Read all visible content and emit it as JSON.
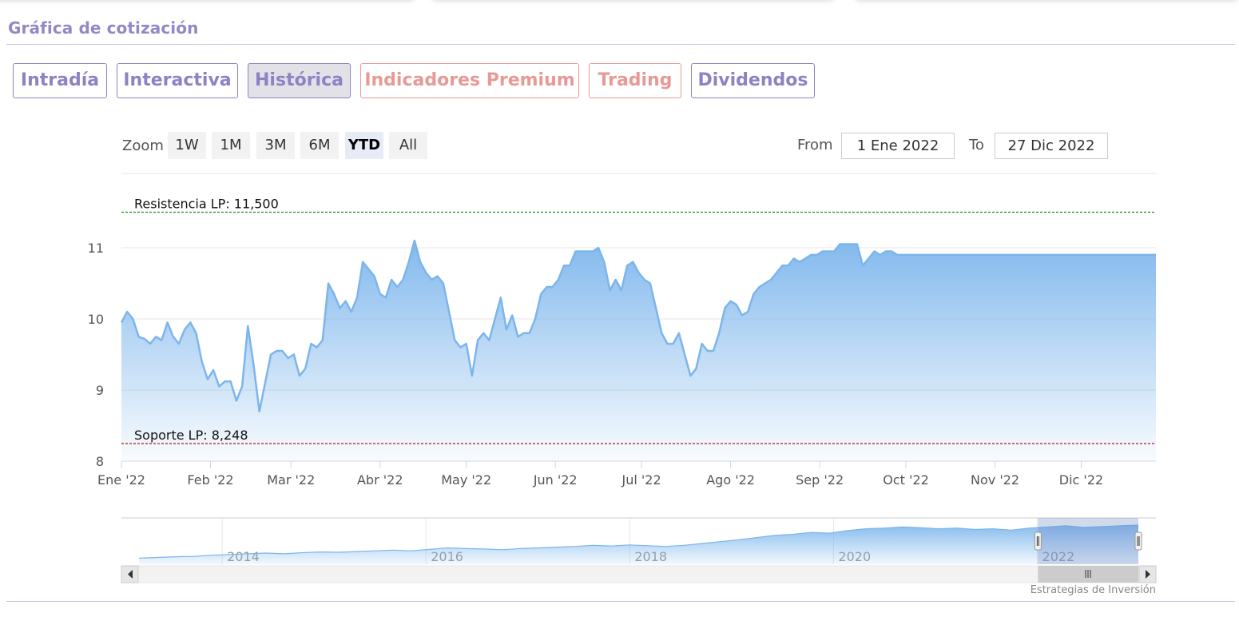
{
  "section": {
    "title": "Gráfica de cotización"
  },
  "tabs": [
    {
      "label": "Intradía"
    },
    {
      "label": "Interactiva"
    },
    {
      "label": "Histórica"
    },
    {
      "label": "Indicadores Premium"
    },
    {
      "label": "Trading"
    },
    {
      "label": "Dividendos"
    }
  ],
  "zoom": {
    "label": "Zoom",
    "buttons": [
      "1W",
      "1M",
      "3M",
      "6M",
      "YTD",
      "All"
    ],
    "active": "YTD"
  },
  "range": {
    "from_label": "From",
    "from_value": "1 Ene 2022",
    "to_label": "To",
    "to_value": "27 Dic 2022"
  },
  "colors": {
    "accent": "#8c83c4",
    "premium": "#e79a95",
    "series_line": "#7cb5ec",
    "resistance": "#1a8a1a",
    "support": "#b00000"
  },
  "chart_data": {
    "type": "area",
    "ylim": [
      8,
      11.6
    ],
    "yticks": [
      "8",
      "9",
      "10",
      "11"
    ],
    "x_labels": [
      "Ene '22",
      "Feb '22",
      "Mar '22",
      "Abr '22",
      "May '22",
      "Jun '22",
      "Jul '22",
      "Ago '22",
      "Sep '22",
      "Oct '22",
      "Nov '22",
      "Dic '22"
    ],
    "x_label_days": [
      0,
      31,
      59,
      90,
      120,
      151,
      181,
      212,
      243,
      273,
      304,
      334
    ],
    "x_range_days": [
      0,
      360
    ],
    "series": [
      {
        "x_days": [
          0,
          2,
          4,
          6,
          8,
          10,
          12,
          14,
          16,
          18,
          20,
          22,
          24,
          26,
          28,
          30,
          32,
          34,
          36,
          38,
          40,
          42,
          44,
          46,
          48,
          50,
          52,
          54,
          56,
          58,
          60,
          62,
          64,
          66,
          68,
          70,
          72,
          74,
          76,
          78,
          80,
          82,
          84,
          86,
          88,
          90,
          92,
          94,
          96,
          98,
          100,
          102,
          104,
          106,
          108,
          110,
          112,
          114,
          116,
          118,
          120,
          122,
          124,
          126,
          128,
          130,
          132,
          134,
          136,
          138,
          140,
          142,
          144,
          146,
          148,
          150,
          152,
          154,
          156,
          158,
          160,
          162,
          164,
          166,
          168,
          170,
          172,
          174,
          176,
          178,
          180,
          182,
          184,
          186,
          188,
          190,
          192,
          194,
          196,
          198,
          200,
          202,
          204,
          206,
          208,
          210,
          212,
          214,
          216,
          218,
          220,
          222,
          224,
          226,
          228,
          230,
          232,
          234,
          236,
          238,
          240,
          242,
          244,
          246,
          248,
          250,
          252,
          254,
          256,
          258,
          260,
          262,
          264,
          266,
          268,
          270,
          272,
          274,
          276,
          278,
          280,
          282,
          284,
          286,
          288,
          290,
          292,
          294,
          296,
          298,
          300,
          302,
          304,
          306,
          308,
          310,
          312,
          314,
          316,
          318,
          320,
          322,
          324,
          326,
          328,
          330,
          332,
          334,
          336,
          338,
          340,
          342,
          344,
          346,
          348,
          350,
          352,
          354,
          356,
          358,
          360
        ],
        "values": [
          9.95,
          10.1,
          10.0,
          9.75,
          9.72,
          9.65,
          9.75,
          9.7,
          9.95,
          9.75,
          9.65,
          9.85,
          9.95,
          9.8,
          9.4,
          9.15,
          9.28,
          9.05,
          9.12,
          9.12,
          8.85,
          9.05,
          9.9,
          9.35,
          8.7,
          9.1,
          9.5,
          9.55,
          9.55,
          9.45,
          9.5,
          9.2,
          9.3,
          9.65,
          9.6,
          9.7,
          10.5,
          10.35,
          10.15,
          10.25,
          10.1,
          10.3,
          10.8,
          10.7,
          10.6,
          10.35,
          10.3,
          10.55,
          10.45,
          10.55,
          10.8,
          11.1,
          10.8,
          10.65,
          10.55,
          10.6,
          10.5,
          10.1,
          9.7,
          9.6,
          9.65,
          9.2,
          9.7,
          9.8,
          9.7,
          10.0,
          10.3,
          9.85,
          10.05,
          9.75,
          9.8,
          9.8,
          10.0,
          10.35,
          10.45,
          10.45,
          10.55,
          10.75,
          10.75,
          10.95,
          10.95,
          10.95,
          10.95,
          11.0,
          10.8,
          10.4,
          10.55,
          10.4,
          10.75,
          10.8,
          10.65,
          10.55,
          10.5,
          10.15,
          9.8,
          9.65,
          9.65,
          9.8,
          9.5,
          9.2,
          9.3,
          9.65,
          9.55,
          9.55,
          9.8,
          10.15,
          10.25,
          10.2,
          10.05,
          10.1,
          10.35,
          10.45,
          10.5,
          10.55,
          10.65,
          10.75,
          10.75,
          10.85,
          10.8,
          10.85,
          10.9,
          10.9,
          10.95,
          10.95,
          10.95,
          11.05,
          11.05,
          11.05,
          11.05,
          10.75,
          10.85,
          10.95,
          10.9,
          10.95,
          10.95,
          10.9,
          10.9,
          10.9,
          10.9,
          10.9,
          10.9,
          10.9,
          10.9,
          10.9,
          10.9,
          10.9,
          10.9,
          10.9,
          10.9,
          10.9,
          10.9,
          10.9,
          10.9,
          10.9,
          10.9,
          10.9,
          10.9,
          10.9,
          10.9,
          10.9,
          10.9,
          10.9,
          10.9,
          10.9,
          10.9,
          10.9,
          10.9,
          10.9,
          10.9,
          10.9,
          10.9,
          10.9,
          10.9,
          10.9,
          10.9,
          10.9,
          10.9,
          10.9,
          10.9,
          10.9,
          10.9
        ]
      }
    ],
    "plot_lines": [
      {
        "label": "Resistencia LP: 11,500",
        "value": 11.5,
        "color": "#1a8a1a"
      },
      {
        "label": "Soporte LP: 8,248",
        "value": 8.248,
        "color": "#b00000"
      }
    ]
  },
  "navigator": {
    "year_labels": [
      "2014",
      "2016",
      "2018",
      "2020",
      "2022"
    ],
    "year_fracs": [
      0.102,
      0.299,
      0.496,
      0.693,
      0.89
    ],
    "series": [
      0.1,
      0.12,
      0.14,
      0.15,
      0.18,
      0.2,
      0.22,
      0.24,
      0.22,
      0.25,
      0.27,
      0.26,
      0.28,
      0.3,
      0.32,
      0.3,
      0.34,
      0.38,
      0.36,
      0.35,
      0.33,
      0.36,
      0.38,
      0.4,
      0.42,
      0.45,
      0.43,
      0.46,
      0.44,
      0.42,
      0.45,
      0.5,
      0.55,
      0.6,
      0.66,
      0.72,
      0.75,
      0.8,
      0.78,
      0.85,
      0.9,
      0.92,
      0.95,
      0.93,
      0.9,
      0.92,
      0.88,
      0.9,
      0.86,
      0.92,
      0.95,
      0.98,
      0.94,
      0.96,
      0.98,
      1.0
    ],
    "selection_frac": [
      0.886,
      1.0
    ]
  },
  "credit": "Estrategias de Inversión"
}
